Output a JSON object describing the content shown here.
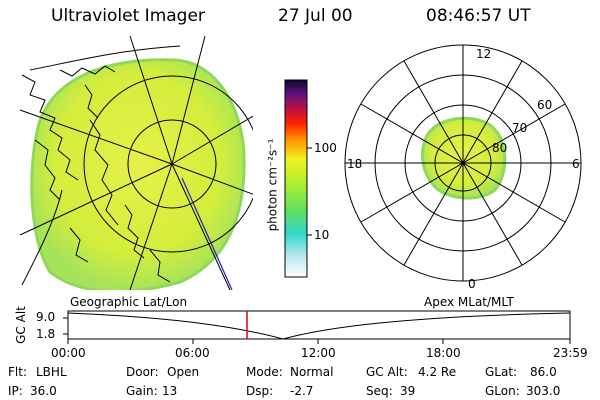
{
  "header": {
    "instrument": "Ultraviolet Imager",
    "date": "27 Jul 00",
    "time": "08:46:57 UT"
  },
  "colorbar": {
    "unit_label": "photon cm⁻²s⁻¹",
    "ticks": [
      "100",
      "10"
    ]
  },
  "polar_plot": {
    "mlt_labels": [
      "12",
      "18",
      "6",
      "0"
    ],
    "lat_labels": [
      "60",
      "70",
      "80"
    ]
  },
  "map_label": "Geographic Lat/Lon",
  "polar_label": "Apex MLat/MLT",
  "altitude_strip": {
    "ylabel": "GC Alt",
    "yticks": [
      "9.0",
      "1.8"
    ],
    "xticks": [
      "00:00",
      "06:00",
      "12:00",
      "18:00",
      "23:59"
    ],
    "marker_color": "#dd0000"
  },
  "footer": {
    "row1": [
      {
        "key": "Flt:",
        "val": "LBHL"
      },
      {
        "key": "Door:",
        "val": "Open"
      },
      {
        "key": "Mode:",
        "val": "Normal"
      },
      {
        "key": "GC Alt:",
        "val": "4.2 Re"
      },
      {
        "key": "GLat:",
        "val": "86.0"
      }
    ],
    "row2": [
      {
        "key": "IP:",
        "val": "36.0"
      },
      {
        "key": "Gain:",
        "val": "13"
      },
      {
        "key": "Dsp:",
        "val": "-2.7"
      },
      {
        "key": "Seq:",
        "val": "39"
      },
      {
        "key": "GLon:",
        "val": "303.0"
      }
    ]
  },
  "colors": {
    "aurora_fill": "#d8f03a",
    "aurora_edge": "#9fe04a"
  }
}
